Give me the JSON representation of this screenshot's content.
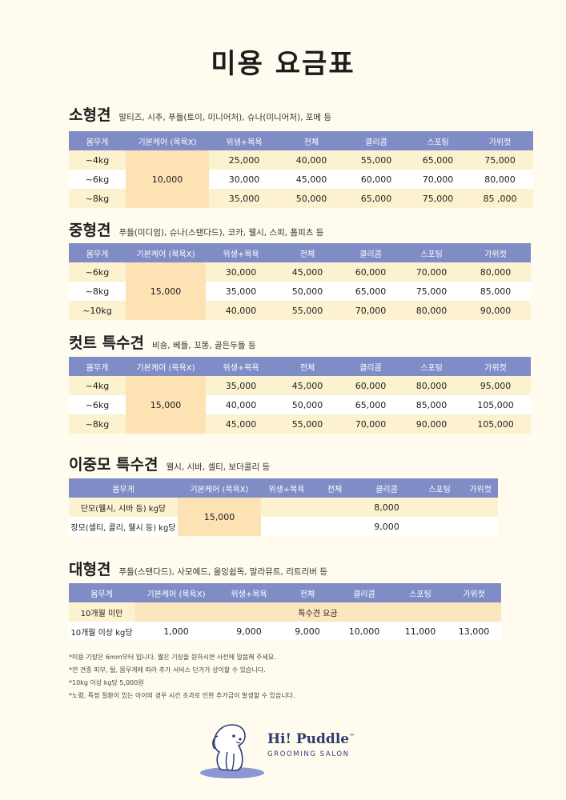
{
  "page_title": "미용 요금표",
  "headers": [
    "몸무게",
    "기본케어 (목욕X)",
    "위생+목욕",
    "전체",
    "클리콤",
    "스포팅",
    "가위컷"
  ],
  "small": {
    "name": "소형견",
    "desc": "말티즈, 시추, 푸들(토이, 미니어처), 슈나(미니어처), 포메 등",
    "care": "10,000",
    "rows": [
      {
        "weight": "~4kg",
        "cells": [
          "25,000",
          "40,000",
          "55,000",
          "65,000",
          "75,000"
        ]
      },
      {
        "weight": "~6kg",
        "cells": [
          "30,000",
          "45,000",
          "60,000",
          "70,000",
          "80,000"
        ]
      },
      {
        "weight": "~8kg",
        "cells": [
          "35,000",
          "50,000",
          "65,000",
          "75,000",
          "85 ,000"
        ]
      }
    ]
  },
  "medium": {
    "name": "중형견",
    "desc": "푸들(미디엄), 슈나(스탠다드), 코카, 웰시, 스피, 폼피츠 등",
    "care": "15,000",
    "rows": [
      {
        "weight": "~6kg",
        "cells": [
          "30,000",
          "45,000",
          "60,000",
          "70,000",
          "80,000"
        ]
      },
      {
        "weight": "~8kg",
        "cells": [
          "35,000",
          "50,000",
          "65,000",
          "75,000",
          "85,000"
        ]
      },
      {
        "weight": "~10kg",
        "cells": [
          "40,000",
          "55,000",
          "70,000",
          "80,000",
          "90,000"
        ]
      }
    ]
  },
  "cut": {
    "name": "컷트 특수견",
    "desc": "비숑, 베들, 꼬똥, 골든두들 등",
    "care": "15,000",
    "rows": [
      {
        "weight": "~4kg",
        "cells": [
          "35,000",
          "45,000",
          "60,000",
          "80,000",
          "95,000"
        ]
      },
      {
        "weight": "~6kg",
        "cells": [
          "40,000",
          "50,000",
          "65,000",
          "85,000",
          "105,000"
        ]
      },
      {
        "weight": "~8kg",
        "cells": [
          "45,000",
          "55,000",
          "70,000",
          "90,000",
          "105,000"
        ]
      }
    ]
  },
  "double": {
    "name": "이중모 특수견",
    "desc": "웰시, 시바, 셀티, 보더콜리 등",
    "care": "15,000",
    "rows": [
      {
        "weight": "단모(웰시, 시바 등) kg당",
        "clippome": "8,000"
      },
      {
        "weight": "장모(셀티, 콜리, 웰시 등) kg당",
        "clippome": "9,000"
      }
    ]
  },
  "large": {
    "name": "대형견",
    "desc": "푸들(스탠다드), 사모예드, 올잉쉽독, 말라뮤트, 리트리버 등",
    "row1_weight": "10개월 미만",
    "row1_special": "특수견 요금",
    "row2_weight": "10개월 이상 kg당",
    "row2_cells": [
      "1,000",
      "9,000",
      "9,000",
      "10,000",
      "11,000",
      "13,000"
    ]
  },
  "notes": [
    "*미용 기장은 6mm부터 입니다. 짧은 기장을 원하시면 사전에 말씀해 주세요.",
    "*전 견종 피부, 털, 몸무게에 따라 추가 서비스 단가가 상이할 수 있습니다.",
    "*10kg 이상 kg당 5,000원",
    "*노령, 특정 질환이 있는 아이의 경우 시간 초과로 인한 추가금이 발생할 수 있습니다."
  ],
  "logo": {
    "brand": "Hi! Puddle",
    "tm": "™",
    "sub": "GROOMING SALON"
  },
  "colors": {
    "header": "#7f8cc6",
    "care": "#fde2b4",
    "row_odd": "#fdf2cf",
    "background": "#fffcef",
    "brand": "#2e3a72"
  }
}
